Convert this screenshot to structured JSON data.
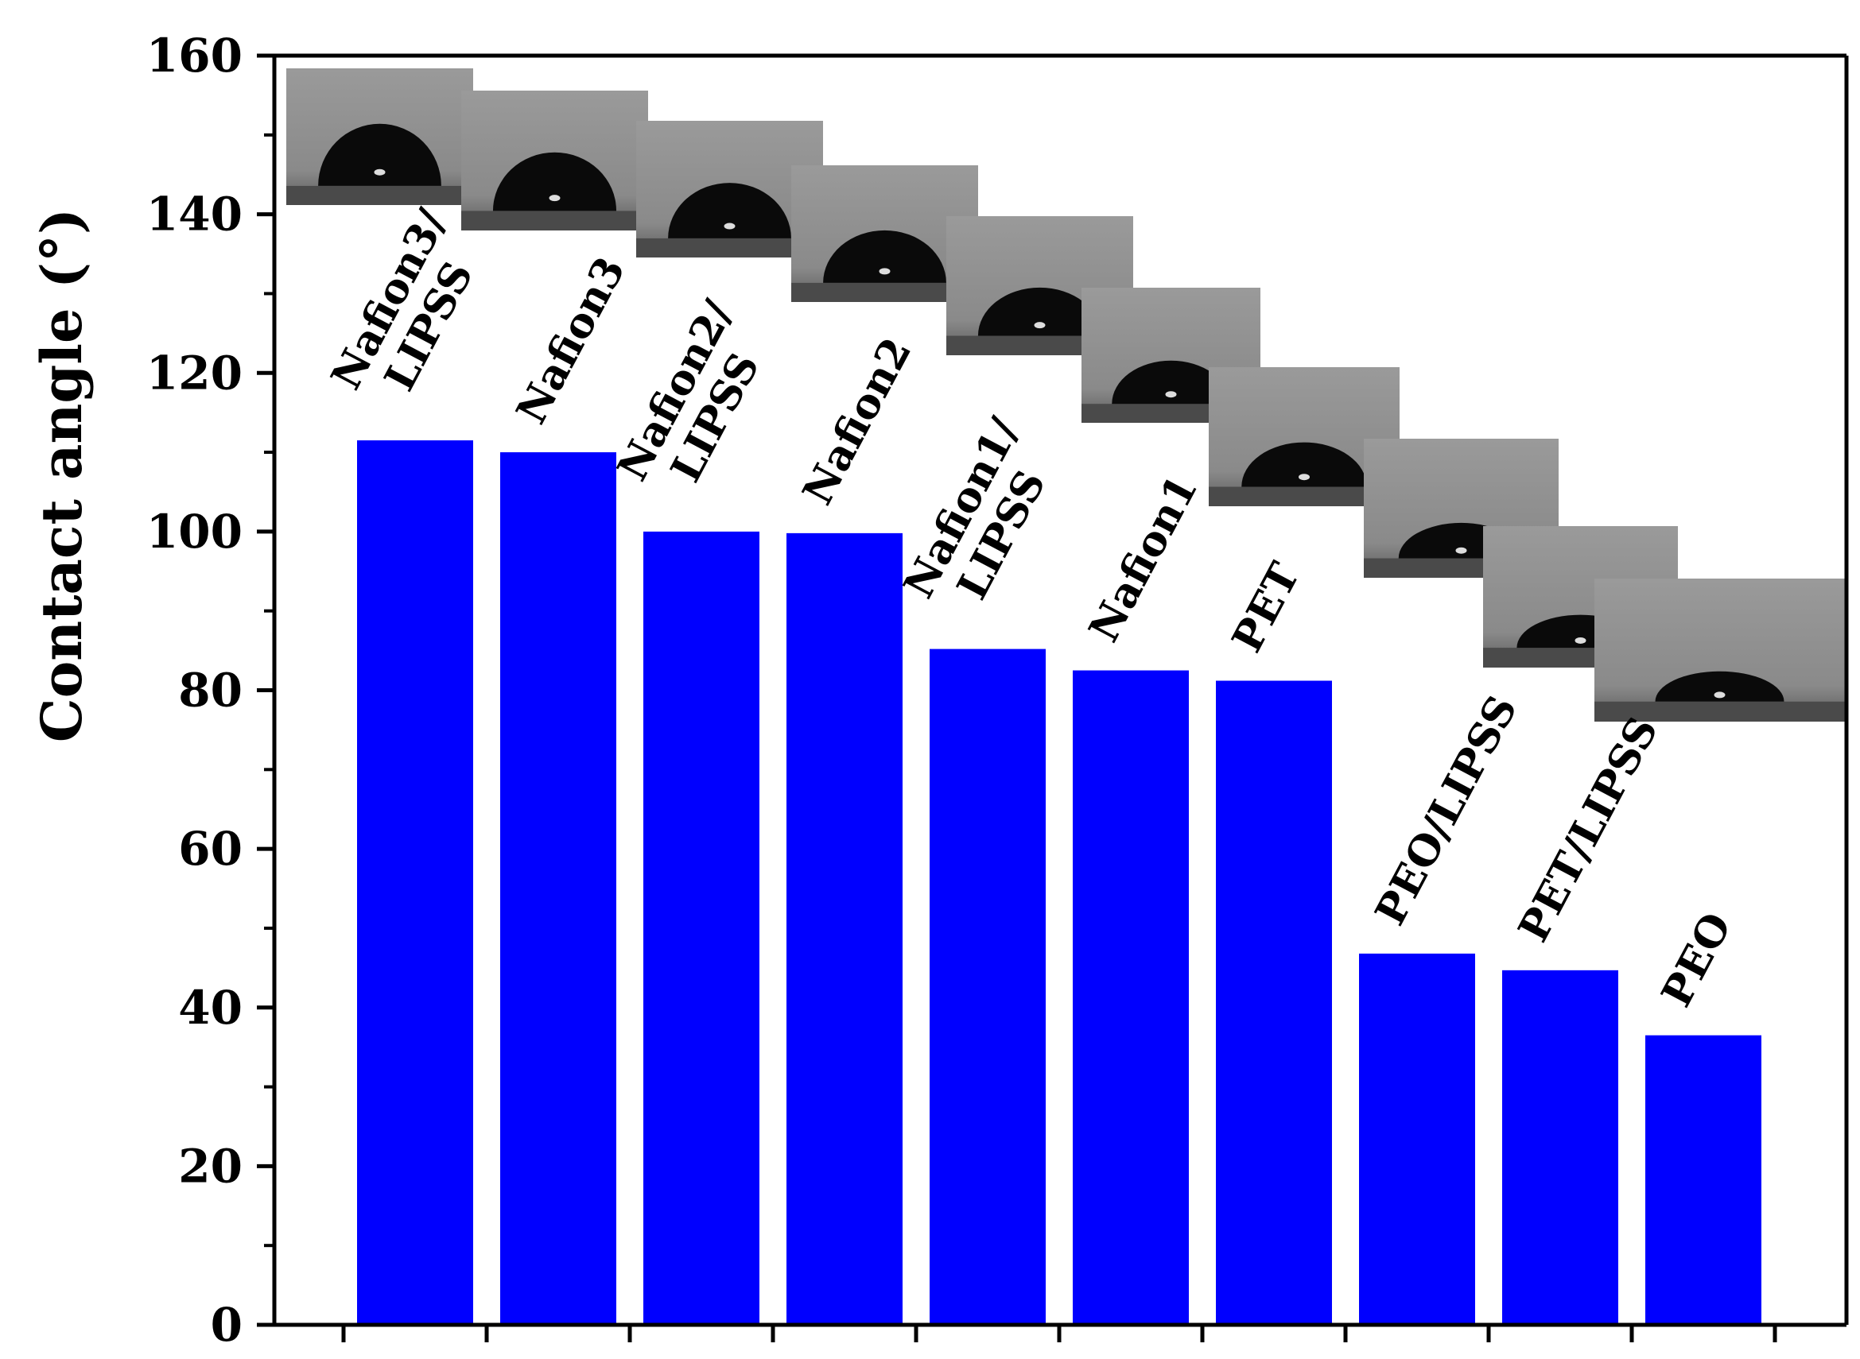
{
  "chart_data": {
    "type": "bar",
    "categories": [
      "Nafion3/LIPSS",
      "Nafion3",
      "Nafion2/LIPSS",
      "Nafion2",
      "Nafion1/LIPSS",
      "Nafion1",
      "PET",
      "PEO/LIPSS",
      "PET/LIPSS",
      "PEO"
    ],
    "category_label_lines": [
      [
        "Nafion3/",
        "LIPSS"
      ],
      [
        "Nafion3"
      ],
      [
        "Nafion2/",
        "LIPSS"
      ],
      [
        "Nafion2"
      ],
      [
        "Nafion1/",
        "LIPSS"
      ],
      [
        "Nafion1"
      ],
      [
        "PET"
      ],
      [
        "PEO/LIPSS"
      ],
      [
        "PET/LIPSS"
      ],
      [
        "PEO"
      ]
    ],
    "values": [
      111.5,
      110.0,
      100.0,
      99.8,
      85.2,
      82.5,
      81.2,
      46.8,
      44.7,
      36.5
    ],
    "title": "",
    "xlabel": "",
    "ylabel": "Contact angle (°)",
    "ylim": [
      0,
      160
    ],
    "yticks": [
      0,
      20,
      40,
      60,
      80,
      100,
      120,
      140,
      160
    ],
    "ytick_labels": [
      "0",
      "20",
      "40",
      "60",
      "80",
      "100",
      "120",
      "140",
      "160"
    ],
    "grid": false,
    "legend": "none",
    "bar_color": "#0000ff",
    "inset_images": "droplet photographs above each bar (not reproduced as data)"
  }
}
